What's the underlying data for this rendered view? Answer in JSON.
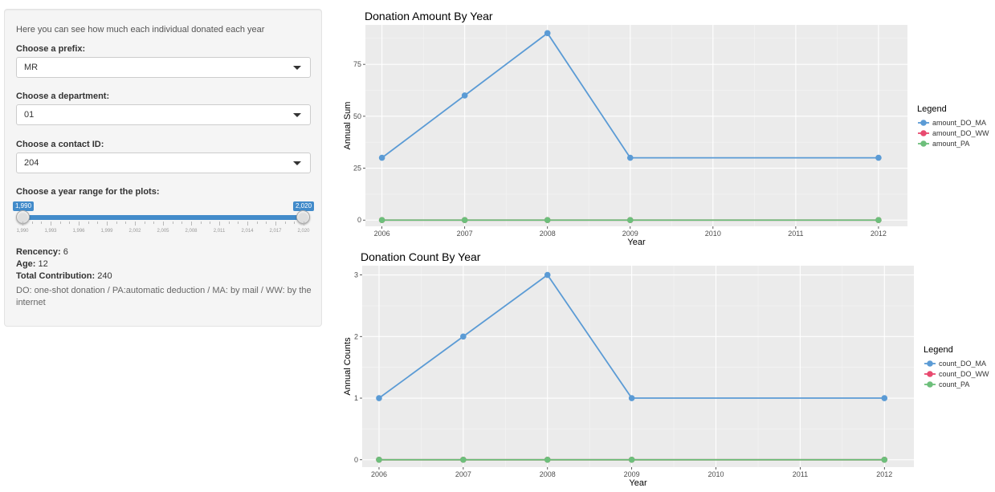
{
  "sidebar": {
    "intro": "Here you can see how much each individual donated each year",
    "prefix": {
      "label": "Choose a prefix:",
      "value": "MR"
    },
    "department": {
      "label": "Choose a department:",
      "value": "01"
    },
    "contact": {
      "label": "Choose a contact ID:",
      "value": "204"
    },
    "year_range": {
      "label": "Choose a year range for the plots:",
      "min": 1990,
      "max": 2020,
      "from_label": "1,990",
      "to_label": "2,020",
      "tick_labels": [
        "1,990",
        "1,993",
        "1,996",
        "1,999",
        "2,002",
        "2,005",
        "2,008",
        "2,011",
        "2,014",
        "2,017",
        "2,020"
      ]
    },
    "recency": {
      "label": "Rencency:",
      "value": "6"
    },
    "age": {
      "label": "Age:",
      "value": "12"
    },
    "total": {
      "label": "Total Contribution:",
      "value": "240"
    },
    "note": "DO: one-shot donation / PA:automatic deduction / MA: by mail / WW: by the internet"
  },
  "colors": {
    "panel_bg": "#ebebeb",
    "grid": "#ffffff",
    "series_blue": "#5b9bd5",
    "series_red": "#e84a6f",
    "series_green": "#6dbf7b"
  },
  "chart_data": [
    {
      "type": "line",
      "title": "Donation Amount By Year",
      "xlabel": "Year",
      "ylabel": "Annual Sum",
      "legend_title": "Legend",
      "legend_position": "right",
      "x": [
        2006,
        2007,
        2008,
        2009,
        2012
      ],
      "xticks": [
        2006,
        2007,
        2008,
        2009,
        2010,
        2011,
        2012
      ],
      "xlim": [
        2005.8,
        2012.35
      ],
      "ylim": [
        -3,
        94
      ],
      "yticks": [
        0,
        25,
        50,
        75
      ],
      "grid": true,
      "series": [
        {
          "name": "amount_DO_MA",
          "color": "#5b9bd5",
          "values": [
            30,
            60,
            90,
            30,
            30
          ]
        },
        {
          "name": "amount_DO_WW",
          "color": "#e84a6f",
          "values": [
            0,
            0,
            0,
            0,
            0
          ]
        },
        {
          "name": "amount_PA",
          "color": "#6dbf7b",
          "values": [
            0,
            0,
            0,
            0,
            0
          ]
        }
      ]
    },
    {
      "type": "line",
      "title": "Donation Count By Year",
      "xlabel": "Year",
      "ylabel": "Annual Counts",
      "legend_title": "Legend",
      "legend_position": "right",
      "x": [
        2006,
        2007,
        2008,
        2009,
        2012
      ],
      "xticks": [
        2006,
        2007,
        2008,
        2009,
        2010,
        2011,
        2012
      ],
      "xlim": [
        2005.8,
        2012.35
      ],
      "ylim": [
        -0.12,
        3.15
      ],
      "yticks": [
        0,
        1,
        2,
        3
      ],
      "grid": true,
      "series": [
        {
          "name": "count_DO_MA",
          "color": "#5b9bd5",
          "values": [
            1,
            2,
            3,
            1,
            1
          ]
        },
        {
          "name": "count_DO_WW",
          "color": "#e84a6f",
          "values": [
            0,
            0,
            0,
            0,
            0
          ]
        },
        {
          "name": "count_PA",
          "color": "#6dbf7b",
          "values": [
            0,
            0,
            0,
            0,
            0
          ]
        }
      ]
    }
  ]
}
